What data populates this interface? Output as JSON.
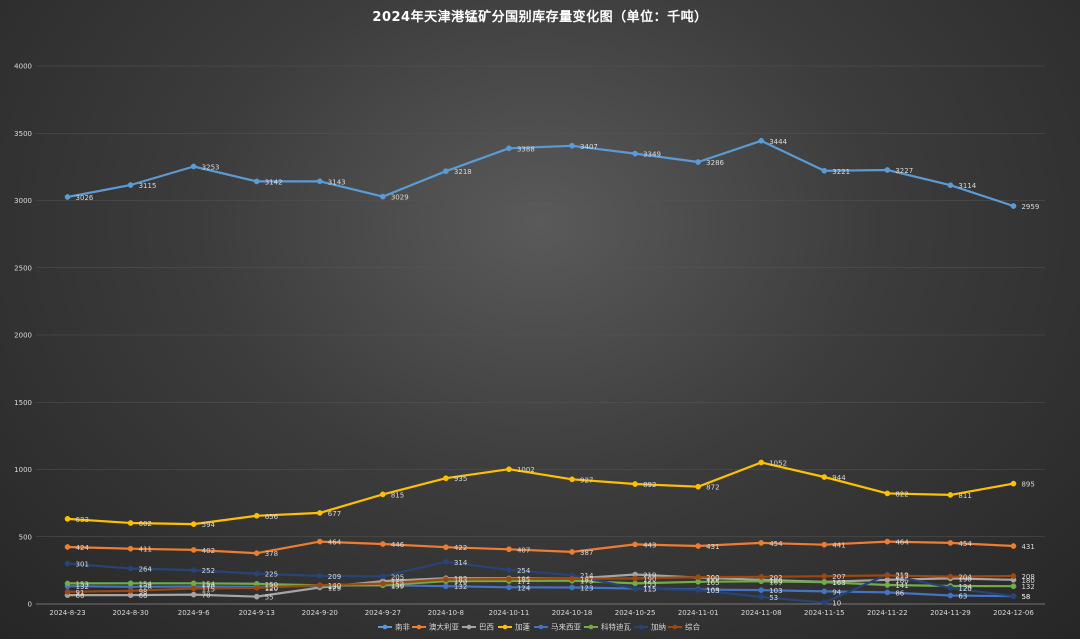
{
  "chart_data": {
    "type": "line",
    "title": "2024年天津港锰矿分国别库存量变化图（单位：千吨）",
    "categories": [
      "2024-8-23",
      "2024-8-30",
      "2024-9-6",
      "2024-9-13",
      "2024-9-20",
      "2024-9-27",
      "2024-10-8",
      "2024-10-11",
      "2024-10-18",
      "2024-10-25",
      "2024-11-01",
      "2024-11-08",
      "2024-11-15",
      "2024-11-22",
      "2024-11-29",
      "2024-12-06"
    ],
    "y_ticks": [
      0,
      500,
      1000,
      1500,
      2000,
      2500,
      3000,
      3500,
      4000
    ],
    "ylim": [
      0,
      4000
    ],
    "grid": true,
    "legend_position": "bottom",
    "series": [
      {
        "name": "南非",
        "color": "#5b9bd5",
        "values": [
          3026,
          3115,
          3253,
          3142,
          3143,
          3029,
          3218,
          3388,
          3407,
          3349,
          3286,
          3444,
          3221,
          3227,
          3114,
          2959
        ]
      },
      {
        "name": "澳大利亚",
        "color": "#ed7d31",
        "values": [
          424,
          411,
          402,
          378,
          464,
          446,
          422,
          407,
          387,
          443,
          431,
          454,
          441,
          464,
          454,
          431
        ]
      },
      {
        "name": "巴西",
        "color": "#a5a5a5",
        "values": [
          66,
          66,
          70,
          55,
          123,
          170,
          192,
          190,
          188,
          219,
          196,
          180,
          164,
          180,
          190,
          180
        ]
      },
      {
        "name": "加蓬",
        "color": "#ffc000",
        "values": [
          633,
          602,
          594,
          656,
          677,
          815,
          935,
          1002,
          927,
          892,
          872,
          1052,
          944,
          822,
          811,
          895
        ]
      },
      {
        "name": "马来西亚",
        "color": "#4472c4",
        "values": [
          132,
          128,
          130,
          128,
          135,
          140,
          132,
          124,
          123,
          115,
          108,
          103,
          94,
          86,
          63,
          58
        ]
      },
      {
        "name": "科特迪瓦",
        "color": "#70ad47",
        "values": [
          153,
          154,
          154,
          150,
          138,
          139,
          170,
          171,
          173,
          153,
          165,
          169,
          163,
          141,
          134,
          132
        ]
      },
      {
        "name": "加纳",
        "color": "#264478",
        "values": [
          301,
          264,
          252,
          225,
          209,
          205,
          314,
          254,
          214,
          115,
          103,
          53,
          10,
          219,
          120,
          58
        ]
      },
      {
        "name": "综合",
        "color": "#9e480e",
        "values": [
          91,
          98,
          115,
          120,
          140,
          152,
          183,
          185,
          187,
          190,
          200,
          202,
          207,
          213,
          204,
          208
        ]
      }
    ]
  }
}
